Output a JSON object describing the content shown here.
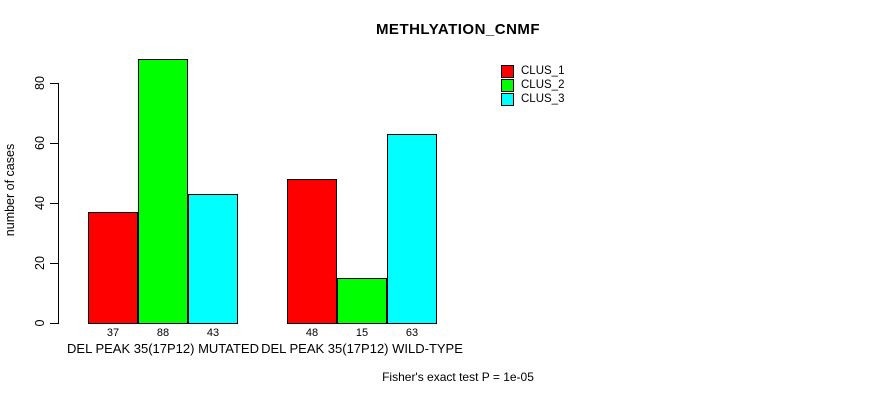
{
  "chart_data": {
    "type": "bar",
    "title": "METHLYATION_CNMF",
    "ylabel": "number of cases",
    "xlabel": "",
    "annotation": "Fisher's exact test P = 1e-05",
    "categories": [
      "DEL PEAK 35(17P12) MUTATED",
      "DEL PEAK 35(17P12) WILD-TYPE"
    ],
    "series": [
      {
        "name": "CLUS_1",
        "color": "#FF0000",
        "values": [
          37,
          48
        ]
      },
      {
        "name": "CLUS_2",
        "color": "#00FF00",
        "values": [
          88,
          15
        ]
      },
      {
        "name": "CLUS_3",
        "color": "#00FFFF",
        "values": [
          43,
          63
        ]
      }
    ],
    "y_ticks": [
      0,
      20,
      40,
      60,
      80
    ],
    "ylim": [
      0,
      88
    ],
    "grid": false,
    "legend_position": "top-right",
    "bar_value_labels": true
  },
  "colors": {
    "background": "#FFFFFF",
    "axis": "#000000",
    "text": "#000000"
  }
}
